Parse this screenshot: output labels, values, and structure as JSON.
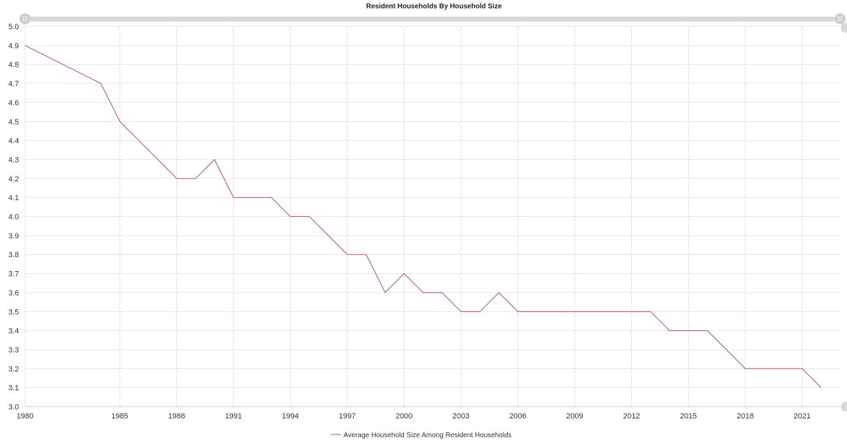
{
  "chart_data": {
    "type": "line",
    "title": "Resident Households By Household Size",
    "xlabel": "",
    "ylabel": "",
    "ylim": [
      3.0,
      5.0
    ],
    "y_ticks": [
      "5.0",
      "4.9",
      "4.8",
      "4.7",
      "4.6",
      "4.5",
      "4.4",
      "4.3",
      "4.2",
      "4.1",
      "4.0",
      "3.9",
      "3.8",
      "3.7",
      "3.6",
      "3.5",
      "3.4",
      "3.3",
      "3.2",
      "3.1",
      "3.0"
    ],
    "x_ticks": [
      "1980",
      "1985",
      "1988",
      "1991",
      "1994",
      "1997",
      "2000",
      "2003",
      "2006",
      "2009",
      "2012",
      "2015",
      "2018",
      "2021"
    ],
    "grid": true,
    "legend_position": "bottom",
    "series": [
      {
        "name": "Average Household Size Among Resident Households",
        "color": "#b5619c",
        "x": [
          1980,
          1984,
          1985,
          1988,
          1989,
          1990,
          1991,
          1993,
          1994,
          1995,
          1997,
          1998,
          1999,
          2000,
          2001,
          2002,
          2003,
          2004,
          2005,
          2006,
          2013,
          2014,
          2016,
          2018,
          2021,
          2022
        ],
        "values": [
          4.9,
          4.7,
          4.5,
          4.2,
          4.2,
          4.3,
          4.1,
          4.1,
          4.0,
          4.0,
          3.8,
          3.8,
          3.6,
          3.7,
          3.6,
          3.6,
          3.5,
          3.5,
          3.6,
          3.5,
          3.5,
          3.4,
          3.4,
          3.2,
          3.2,
          3.1
        ]
      }
    ]
  }
}
